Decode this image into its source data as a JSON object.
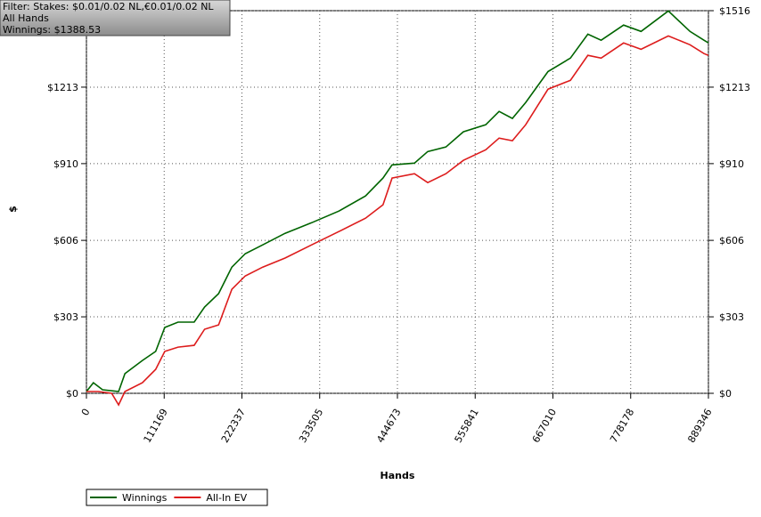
{
  "chart_data": {
    "type": "line",
    "info": [
      "Filter: Stakes: $0.01/0.02 NL,€0.01/0.02 NL",
      "All Hands",
      "Winnings: $1388.53"
    ],
    "xlabel": "Hands",
    "ylabel": "$",
    "xlim": [
      0,
      889346
    ],
    "ylim": [
      0,
      1516
    ],
    "xticks": [
      0,
      111169,
      222337,
      333505,
      444673,
      555841,
      667010,
      778178,
      889346
    ],
    "yticks": [
      {
        "value": 0,
        "label": "$0"
      },
      {
        "value": 303,
        "label": "$303"
      },
      {
        "value": 606,
        "label": "$606"
      },
      {
        "value": 910,
        "label": "$910"
      },
      {
        "value": 1213,
        "label": "$1213"
      },
      {
        "value": 1516,
        "label": "$1516"
      }
    ],
    "grid": true,
    "legend": "bottom-left",
    "series": [
      {
        "name": "Winnings",
        "color": "#006400",
        "x": [
          0,
          10000,
          23000,
          46000,
          55000,
          80000,
          99000,
          112000,
          131000,
          154000,
          169000,
          189000,
          208000,
          227000,
          252000,
          284000,
          322000,
          361000,
          399000,
          424000,
          437000,
          469000,
          488000,
          514000,
          539000,
          571000,
          590000,
          609000,
          628000,
          660000,
          692000,
          717000,
          736000,
          768000,
          793000,
          832000,
          863000,
          883000,
          889346
        ],
        "values": [
          7,
          42,
          14,
          7,
          78,
          130,
          166,
          261,
          282,
          282,
          342,
          395,
          500,
          553,
          588,
          634,
          676,
          722,
          782,
          853,
          905,
          912,
          958,
          976,
          1036,
          1064,
          1117,
          1089,
          1152,
          1275,
          1328,
          1423,
          1399,
          1459,
          1434,
          1515,
          1434,
          1399,
          1388.53
        ]
      },
      {
        "name": "All-In EV",
        "color": "#dd1c1c",
        "x": [
          0,
          17000,
          36000,
          46000,
          55000,
          80000,
          99000,
          112000,
          131000,
          154000,
          169000,
          189000,
          208000,
          227000,
          252000,
          284000,
          322000,
          361000,
          399000,
          424000,
          437000,
          469000,
          488000,
          514000,
          539000,
          571000,
          590000,
          609000,
          628000,
          660000,
          692000,
          717000,
          736000,
          768000,
          793000,
          832000,
          863000,
          883000,
          889346
        ],
        "values": [
          7,
          7,
          0,
          -46,
          7,
          42,
          95,
          166,
          183,
          190,
          254,
          271,
          412,
          465,
          500,
          536,
          588,
          641,
          694,
          747,
          853,
          870,
          835,
          870,
          923,
          965,
          1011,
          1001,
          1064,
          1205,
          1240,
          1339,
          1328,
          1388,
          1363,
          1416,
          1381,
          1346,
          1339
        ]
      }
    ]
  }
}
